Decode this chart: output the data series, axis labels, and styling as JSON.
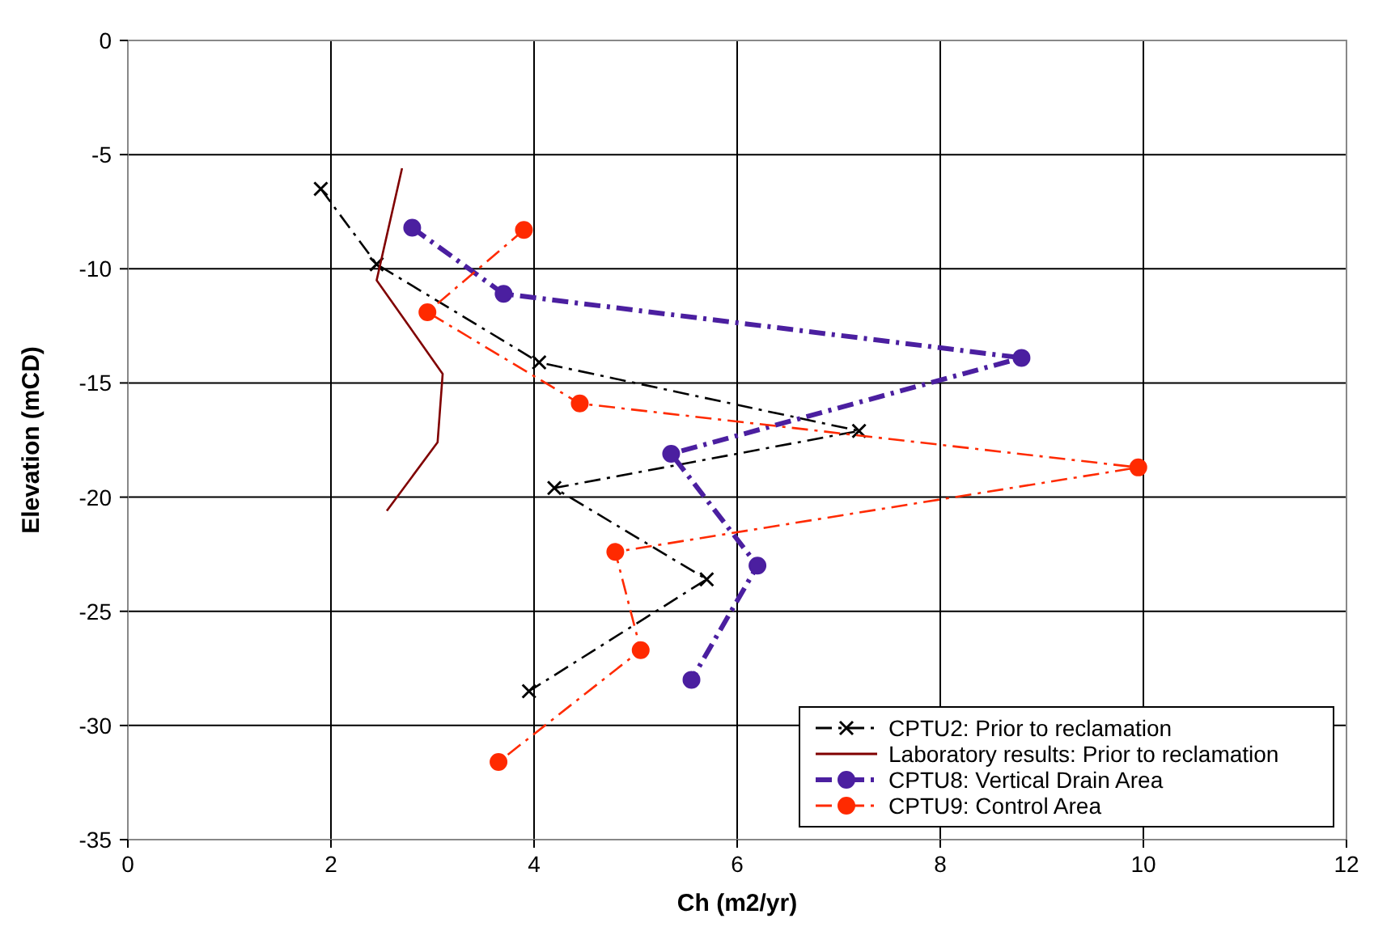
{
  "chart_data": {
    "type": "line",
    "xlabel": "Ch (m2/yr)",
    "ylabel": "Elevation (mCD)",
    "xlim": [
      0,
      12
    ],
    "xticks": [
      0,
      2,
      4,
      6,
      8,
      10,
      12
    ],
    "ylim": [
      -35,
      0
    ],
    "yticks": [
      -35,
      -30,
      -25,
      -20,
      -15,
      -10,
      -5,
      0
    ],
    "grid": true,
    "legend": "bottom right",
    "series": [
      {
        "name": "CPTU2: Prior to reclamation",
        "color": "#000000",
        "marker": "cross",
        "line_style": "dashed",
        "x": [
          1.9,
          2.45,
          4.05,
          7.2,
          4.2,
          5.7,
          3.95
        ],
        "values": [
          -6.5,
          -9.8,
          -14.1,
          -17.1,
          -19.6,
          -23.6,
          -28.5
        ]
      },
      {
        "name": "Laboratory results: Prior to reclamation",
        "color": "#800000",
        "marker": "none",
        "line_style": "solid",
        "x": [
          2.7,
          2.45,
          3.1,
          3.05,
          2.55
        ],
        "values": [
          -5.6,
          -10.5,
          -14.6,
          -17.6,
          -20.6
        ]
      },
      {
        "name": "CPTU8: Vertical Drain Area",
        "color": "#4b1fa0",
        "marker": "circle",
        "line_style": "dashed",
        "x": [
          2.8,
          3.7,
          8.8,
          5.35,
          6.2,
          5.55
        ],
        "values": [
          -8.2,
          -11.1,
          -13.9,
          -18.1,
          -23.0,
          -28.0
        ]
      },
      {
        "name": "CPTU9: Control Area",
        "color": "#ff2a00",
        "marker": "circle",
        "line_style": "dashed",
        "x": [
          3.9,
          2.95,
          4.45,
          9.95,
          4.8,
          5.05,
          3.65
        ],
        "values": [
          -8.3,
          -11.9,
          -15.9,
          -18.7,
          -22.4,
          -26.7,
          -31.6
        ]
      }
    ]
  }
}
